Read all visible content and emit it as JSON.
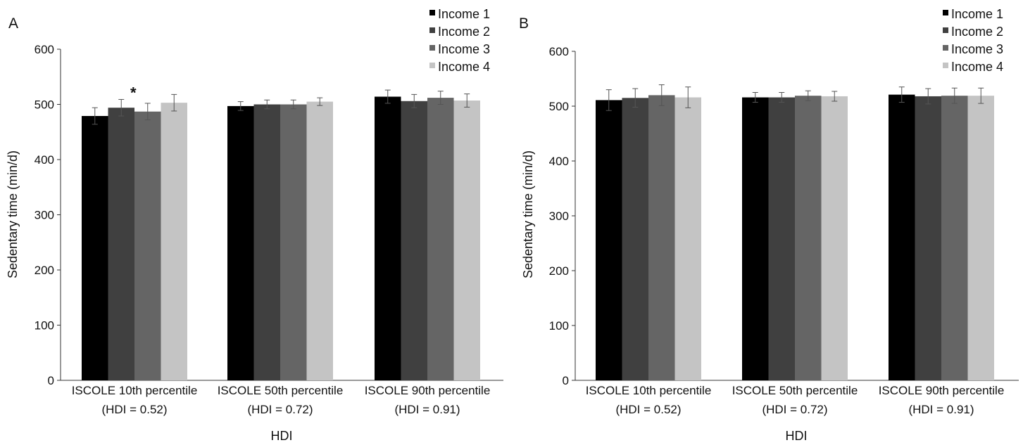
{
  "chart_data": [
    {
      "panel_label": "A",
      "type": "bar",
      "ylabel": "Sedentary time (min/d)",
      "xlabel": "HDI",
      "ylim": [
        0,
        600
      ],
      "yticks": [
        0,
        100,
        200,
        300,
        400,
        500,
        600
      ],
      "categories": [
        [
          "ISCOLE 10th percentile",
          "(HDI = 0.52)"
        ],
        [
          "ISCOLE 50th percentile",
          "(HDI = 0.72)"
        ],
        [
          "ISCOLE 90th percentile",
          "(HDI = 0.91)"
        ]
      ],
      "series": [
        {
          "name": "Income 1",
          "color": "#000000",
          "values": [
            479,
            497,
            514
          ],
          "errors": [
            15,
            8,
            12
          ]
        },
        {
          "name": "Income 2",
          "color": "#404040",
          "values": [
            494,
            500,
            506
          ],
          "errors": [
            15,
            8,
            12
          ]
        },
        {
          "name": "Income 3",
          "color": "#656565",
          "values": [
            487,
            500,
            512
          ],
          "errors": [
            15,
            8,
            12
          ]
        },
        {
          "name": "Income 4",
          "color": "#c4c4c4",
          "values": [
            503,
            505,
            507
          ],
          "errors": [
            15,
            7,
            12
          ]
        }
      ],
      "annotations": [
        {
          "text": "*",
          "category": 0,
          "series": 1
        }
      ],
      "legend": "top-right",
      "grid": false
    },
    {
      "panel_label": "B",
      "type": "bar",
      "ylabel": "Sedentary time (min/d)",
      "xlabel": "HDI",
      "ylim": [
        0,
        600
      ],
      "yticks": [
        0,
        100,
        200,
        300,
        400,
        500,
        600
      ],
      "categories": [
        [
          "ISCOLE 10th percentile",
          "(HDI = 0.52)"
        ],
        [
          "ISCOLE 50th percentile",
          "(HDI = 0.72)"
        ],
        [
          "ISCOLE 90th percentile",
          "(HDI = 0.91)"
        ]
      ],
      "series": [
        {
          "name": "Income 1",
          "color": "#000000",
          "values": [
            511,
            516,
            521
          ],
          "errors": [
            19,
            9,
            14
          ]
        },
        {
          "name": "Income 2",
          "color": "#404040",
          "values": [
            515,
            516,
            518
          ],
          "errors": [
            17,
            9,
            14
          ]
        },
        {
          "name": "Income 3",
          "color": "#656565",
          "values": [
            520,
            519,
            519
          ],
          "errors": [
            19,
            9,
            14
          ]
        },
        {
          "name": "Income 4",
          "color": "#c4c4c4",
          "values": [
            516,
            518,
            519
          ],
          "errors": [
            19,
            9,
            14
          ]
        }
      ],
      "annotations": [],
      "legend": "top-right",
      "grid": false
    }
  ]
}
